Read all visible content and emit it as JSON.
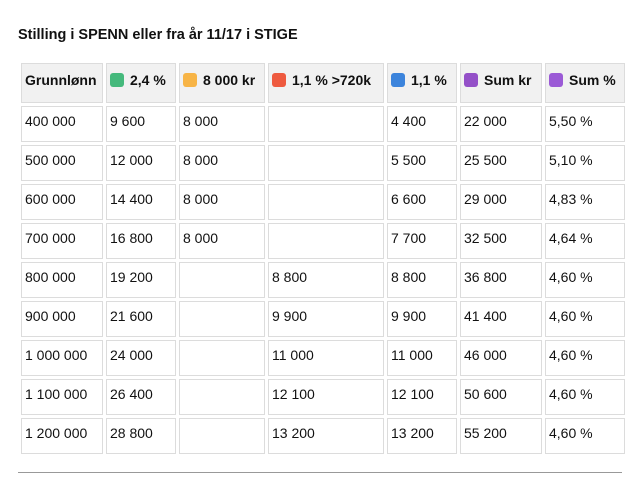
{
  "header": {
    "title": "Stilling i SPENN eller fra år 11/17 i STIGE"
  },
  "table": {
    "columns": [
      "Grunnlønn",
      "2,4 %",
      "8 000 kr",
      "1,1 % >720k",
      "1,1 %",
      "Sum kr",
      "Sum %"
    ],
    "rows": [
      [
        "400 000",
        "9 600",
        "8 000",
        null,
        "4 400",
        "22 000",
        "5,50 %"
      ],
      [
        "500 000",
        "12 000",
        "8 000",
        null,
        "5 500",
        "25 500",
        "5,10 %"
      ],
      [
        "600 000",
        "14 400",
        "8 000",
        null,
        "6 600",
        "29 000",
        "4,83 %"
      ],
      [
        "700 000",
        "16 800",
        "8 000",
        null,
        "7 700",
        "32 500",
        "4,64 %"
      ],
      [
        "800 000",
        "19 200",
        null,
        "8 800",
        "8 800",
        "36 800",
        "4,60 %"
      ],
      [
        "900 000",
        "21 600",
        null,
        "9 900",
        "9 900",
        "41 400",
        "4,60 %"
      ],
      [
        "1 000 000",
        "24 000",
        null,
        "11 000",
        "11 000",
        "46 000",
        "4,60 %"
      ],
      [
        "1 100 000",
        "26 400",
        null,
        "12 100",
        "12 100",
        "50 600",
        "4,60 %"
      ],
      [
        "1 200 000",
        "28 800",
        null,
        "13 200",
        "13 200",
        "55 200",
        "4,60 %"
      ]
    ]
  }
}
